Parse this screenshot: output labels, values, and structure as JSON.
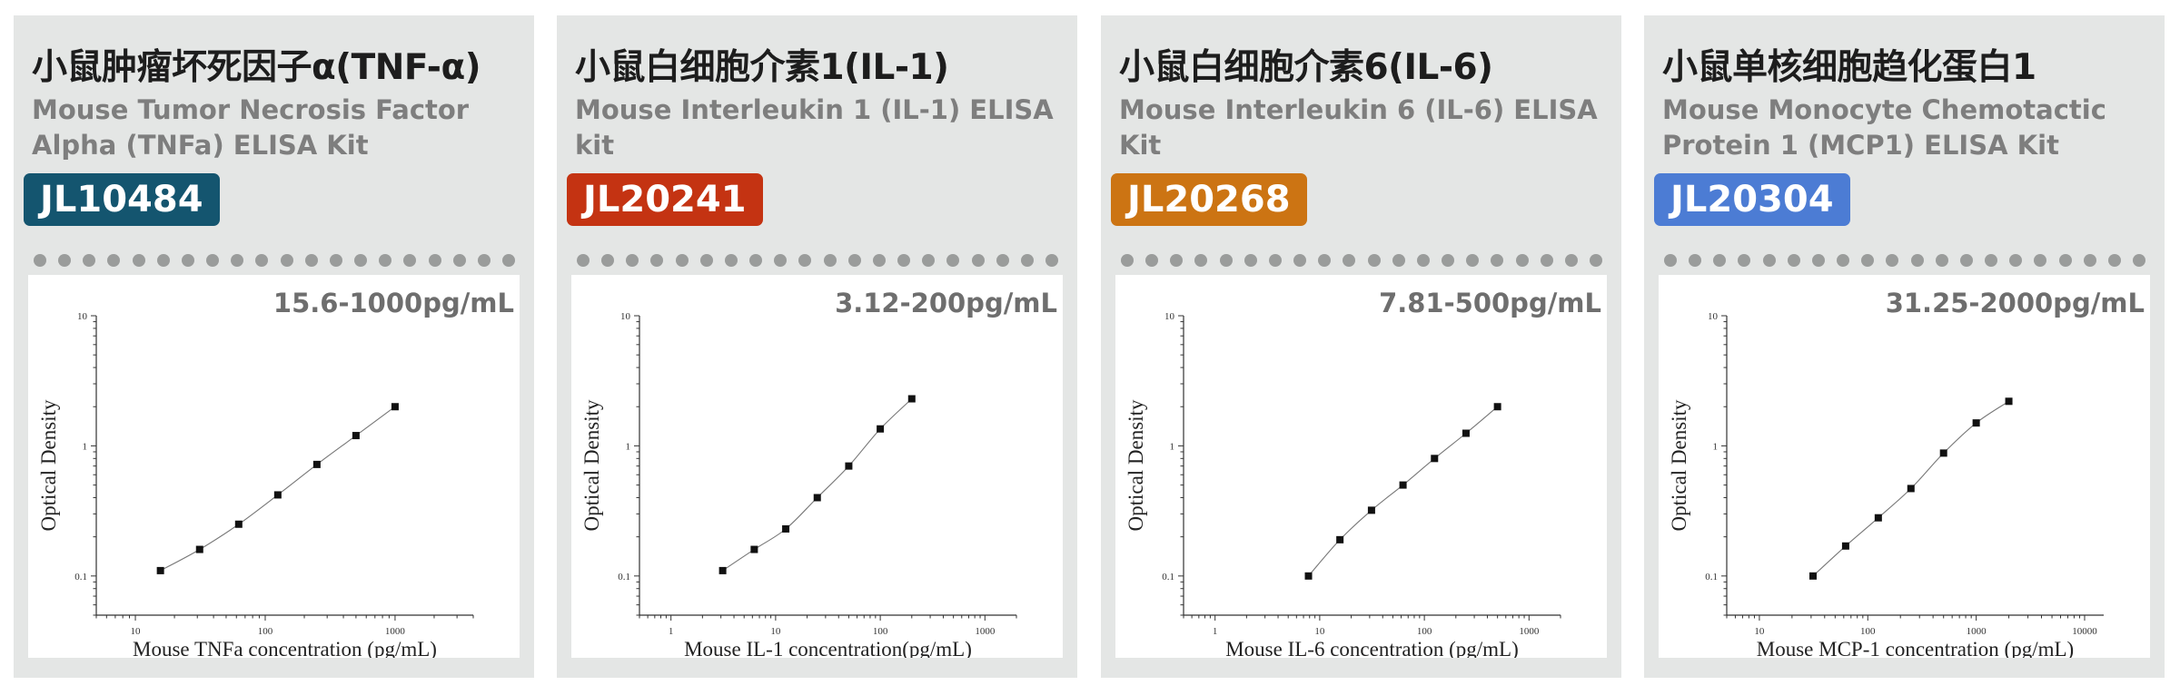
{
  "products": [
    {
      "title": "小鼠肿瘤坏死因子α(TNF-α)",
      "subtitle": "Mouse Tumor Necrosis Factor Alpha (TNFa) ELISA Kit",
      "code": "JL10484",
      "code_color": "#14556f",
      "range": "15.6-1000pg/mL"
    },
    {
      "title": "小鼠白细胞介素1(IL-1)",
      "subtitle": "Mouse Interleukin 1 (IL-1) ELISA kit",
      "code": "JL20241",
      "code_color": "#c43312",
      "range": "3.12-200pg/mL"
    },
    {
      "title": "小鼠白细胞介素6(IL-6)",
      "subtitle": "Mouse Interleukin 6 (IL-6) ELISA Kit",
      "code": "JL20268",
      "code_color": "#cc7413",
      "range": "7.81-500pg/mL"
    },
    {
      "title": "小鼠单核细胞趋化蛋白1",
      "subtitle": "Mouse Monocyte Chemotactic Protein 1 (MCP1) ELISA Kit",
      "code": "JL20304",
      "code_color": "#4c7cd4",
      "range": "31.25-2000pg/mL"
    }
  ],
  "chart_data": [
    {
      "type": "scatter",
      "xscale": "log",
      "yscale": "log",
      "xlim": [
        5,
        4000
      ],
      "ylim": [
        0.05,
        10
      ],
      "xticks": [
        10,
        100,
        1000
      ],
      "yticks": [
        0.1,
        1,
        10
      ],
      "xlabel": "Mouse TNFa concentration (pg/mL)",
      "ylabel": "Optical Density",
      "x": [
        15.6,
        31.25,
        62.5,
        125,
        250,
        500,
        1000
      ],
      "y": [
        0.11,
        0.16,
        0.25,
        0.42,
        0.72,
        1.2,
        2.0
      ]
    },
    {
      "type": "scatter",
      "xscale": "log",
      "yscale": "log",
      "xlim": [
        0.5,
        2000
      ],
      "ylim": [
        0.05,
        10
      ],
      "xticks": [
        1,
        10,
        100,
        1000
      ],
      "yticks": [
        0.1,
        1,
        10
      ],
      "xlabel": "Mouse IL-1 concentration(pg/mL)",
      "ylabel": "Optical Density",
      "x": [
        3.12,
        6.25,
        12.5,
        25,
        50,
        100,
        200
      ],
      "y": [
        0.11,
        0.16,
        0.23,
        0.4,
        0.7,
        1.35,
        2.3
      ]
    },
    {
      "type": "scatter",
      "xscale": "log",
      "yscale": "log",
      "xlim": [
        0.5,
        2000
      ],
      "ylim": [
        0.05,
        10
      ],
      "xticks": [
        1,
        10,
        100,
        1000
      ],
      "yticks": [
        0.1,
        1,
        10
      ],
      "xlabel": "Mouse IL-6 concentration (pg/mL)",
      "ylabel": "Optical Density",
      "x": [
        7.81,
        15.6,
        31.25,
        62.5,
        125,
        250,
        500
      ],
      "y": [
        0.1,
        0.19,
        0.32,
        0.5,
        0.8,
        1.25,
        2.0
      ]
    },
    {
      "type": "scatter",
      "xscale": "log",
      "yscale": "log",
      "xlim": [
        5,
        15000
      ],
      "ylim": [
        0.05,
        10
      ],
      "xticks": [
        10,
        100,
        1000,
        10000
      ],
      "yticks": [
        0.1,
        1,
        10
      ],
      "xlabel": "Mouse MCP-1 concentration (pg/mL)",
      "ylabel": "Optical Density",
      "x": [
        31.25,
        62.5,
        125,
        250,
        500,
        1000,
        2000
      ],
      "y": [
        0.1,
        0.17,
        0.28,
        0.47,
        0.88,
        1.5,
        2.2
      ]
    }
  ]
}
